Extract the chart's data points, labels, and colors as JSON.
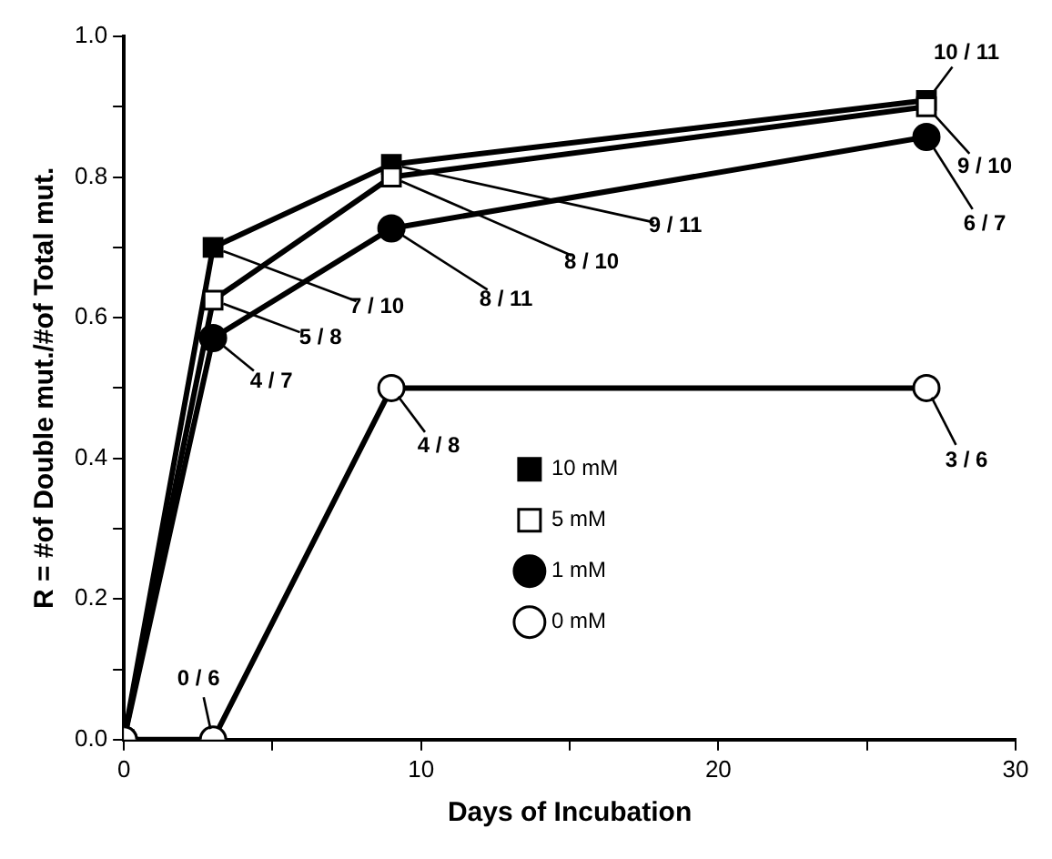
{
  "chart_data": {
    "type": "line",
    "xlabel": "Days of Incubation",
    "ylabel": "R = #of Double mut./#of Total mut.",
    "x": [
      0,
      3,
      9,
      27
    ],
    "series": [
      {
        "name": "10 mM",
        "color": "#000000",
        "marker": "square",
        "values": [
          0,
          0.7,
          0.818,
          0.909
        ]
      },
      {
        "name": "5 mM",
        "color": "#ffffff",
        "marker": "square",
        "values": [
          0,
          0.625,
          0.8,
          0.9
        ]
      },
      {
        "name": "1 mM",
        "color": "#000000",
        "marker": "circle",
        "values": [
          0,
          0.571,
          0.727,
          0.857
        ]
      },
      {
        "name": "0 mM",
        "color": "#ffffff",
        "marker": "circle",
        "values": [
          0,
          0,
          0.5,
          0.5
        ]
      }
    ],
    "annotations": [
      {
        "text": "7 / 10",
        "x": 3,
        "y": 0.7
      },
      {
        "text": "9 / 11",
        "x": 9,
        "y": 0.818
      },
      {
        "text": "10 / 11",
        "x": 27,
        "y": 0.909
      },
      {
        "text": "5 / 8",
        "x": 3,
        "y": 0.625
      },
      {
        "text": "8 / 10",
        "x": 9,
        "y": 0.8
      },
      {
        "text": "9 / 10",
        "x": 27,
        "y": 0.9
      },
      {
        "text": "4 / 7",
        "x": 3,
        "y": 0.571
      },
      {
        "text": "8 / 11",
        "x": 9,
        "y": 0.727
      },
      {
        "text": "6 / 7",
        "x": 27,
        "y": 0.857
      },
      {
        "text": "0 / 6",
        "x": 3,
        "y": 0
      },
      {
        "text": "4 / 8",
        "x": 9,
        "y": 0.5
      },
      {
        "text": "3 / 6",
        "x": 27,
        "y": 0.5
      }
    ],
    "xlim": [
      0,
      30
    ],
    "xticks": [
      0,
      {
        "value": 5,
        "label": null
      },
      10,
      {
        "value": 15,
        "label": null
      },
      20,
      {
        "value": 25,
        "label": null
      },
      30
    ],
    "ylim": [
      0,
      1
    ],
    "yticks": [
      {
        "value": 0,
        "label": "0.0"
      },
      {
        "value": 0.1,
        "label": null
      },
      0.2,
      {
        "value": 0.3,
        "label": null
      },
      0.4,
      {
        "value": 0.5,
        "label": null
      },
      0.6,
      {
        "value": 0.7,
        "label": null
      },
      0.8,
      {
        "value": 0.9,
        "label": null
      },
      {
        "value": 1,
        "label": "1.0"
      }
    ],
    "grid": false,
    "legend": "center right"
  }
}
